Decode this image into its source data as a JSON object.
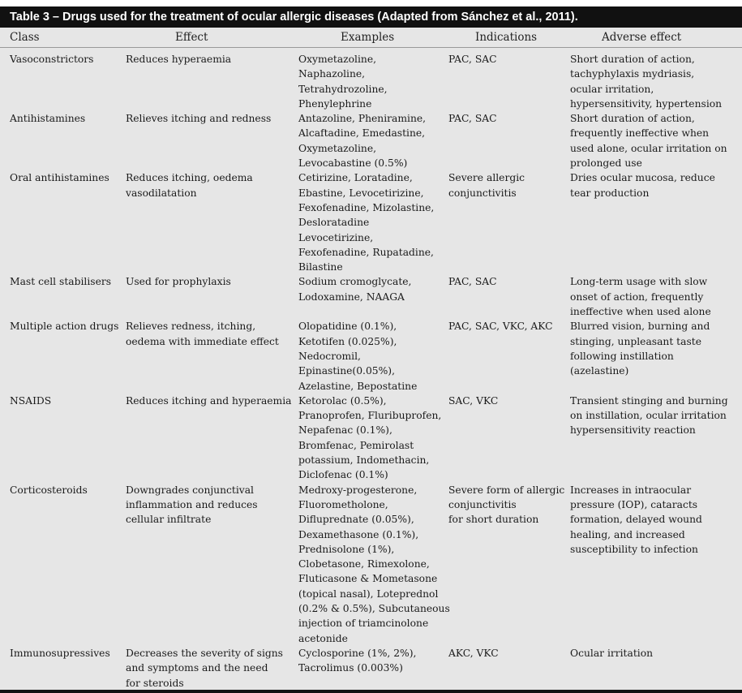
{
  "title": "Table 3 – Drugs used for the treatment of ocular allergic diseases (Adapted from Sánchez et al., 2011).",
  "columns": [
    "Class",
    "Effect",
    "Examples",
    "Indications",
    "Adverse effect"
  ],
  "rows": [
    {
      "class": [
        "Vasoconstrictors"
      ],
      "effect": [
        "Reduces hyperaemia"
      ],
      "examples": [
        "Oxymetazoline,",
        "Naphazoline,",
        "Tetrahydrozoline,",
        "Phenylephrine"
      ],
      "indications": [
        "PAC, SAC"
      ],
      "adverse": [
        "Short duration of action,",
        "tachyphylaxis mydriasis,",
        "ocular irritation,",
        "hypersensitivity, hypertension"
      ]
    },
    {
      "class": [
        "Antihistamines"
      ],
      "effect": [
        "Relieves itching and redness"
      ],
      "examples": [
        "Antazoline, Pheniramine,",
        "Alcaftadine, Emedastine,",
        "Oxymetazoline,",
        "Levocabastine (0.5%)"
      ],
      "indications": [
        "PAC, SAC"
      ],
      "adverse": [
        "Short duration of action,",
        "frequently ineffective when",
        "used alone, ocular irritation on",
        "prolonged use"
      ]
    },
    {
      "class": [
        "Oral antihistamines"
      ],
      "effect": [
        "Reduces itching, oedema",
        "vasodilatation"
      ],
      "examples": [
        "Cetirizine, Loratadine,",
        "Ebastine, Levocetirizine,",
        "Fexofenadine, Mizolastine,",
        "Desloratadine",
        "Levocetirizine,",
        "Fexofenadine, Rupatadine,",
        "Bilastine"
      ],
      "indications": [
        "Severe allergic",
        "conjunctivitis"
      ],
      "adverse": [
        "Dries ocular mucosa, reduce",
        "tear production"
      ]
    },
    {
      "class": [
        "Mast cell stabilisers"
      ],
      "effect": [
        "Used for prophylaxis"
      ],
      "examples": [
        "Sodium cromoglycate,",
        "Lodoxamine, NAAGA"
      ],
      "indications": [
        "PAC, SAC"
      ],
      "adverse": [
        "Long-term usage with slow",
        "onset of action, frequently",
        "ineffective when used alone"
      ]
    },
    {
      "class": [
        "Multiple action drugs"
      ],
      "effect": [
        "Relieves redness, itching,",
        "oedema with immediate effect"
      ],
      "examples": [
        "Olopatidine (0.1%),",
        "Ketotifen (0.025%),",
        "Nedocromil,",
        "Epinastine(0.05%),",
        "Azelastine, Bepostatine"
      ],
      "indications": [
        "PAC, SAC, VKC, AKC"
      ],
      "adverse": [
        "Blurred vision, burning and",
        "stinging, unpleasant taste",
        "following instillation",
        "(azelastine)"
      ]
    },
    {
      "class": [
        "NSAIDS"
      ],
      "effect": [
        "Reduces itching and hyperaemia"
      ],
      "examples": [
        "Ketorolac (0.5%),",
        "Pranoprofen, Fluribuprofen,",
        "Nepafenac (0.1%),",
        "Bromfenac, Pemirolast",
        "potassium, Indomethacin,",
        "Diclofenac (0.1%)"
      ],
      "indications": [
        "SAC, VKC"
      ],
      "adverse": [
        "Transient stinging and burning",
        "on instillation, ocular irritation",
        "hypersensitivity reaction"
      ]
    },
    {
      "class": [
        "Corticosteroids"
      ],
      "effect": [
        "Downgrades conjunctival",
        "inflammation and reduces",
        "cellular infiltrate"
      ],
      "examples": [
        "Medroxy-progesterone,",
        "Fluorometholone,",
        "Difluprednate (0.05%),",
        "Dexamethasone (0.1%),",
        "Prednisolone (1%),",
        "Clobetasone, Rimexolone,",
        "Fluticasone & Mometasone",
        "(topical nasal), Loteprednol",
        "(0.2% & 0.5%), Subcutaneous",
        "injection of triamcinolone",
        "acetonide"
      ],
      "indications": [
        "Severe form of allergic",
        "conjunctivitis",
        "for short duration"
      ],
      "adverse": [
        "Increases in intraocular",
        "pressure (IOP), cataracts",
        "formation, delayed wound",
        "healing, and increased",
        "susceptibility to infection"
      ]
    },
    {
      "class": [
        "Immunosupressives"
      ],
      "effect": [
        "Decreases the severity of signs",
        "and symptoms and the need",
        "for steroids"
      ],
      "examples": [
        "Cyclosporine (1%, 2%),",
        "Tacrolimus (0.003%)"
      ],
      "indications": [
        "AKC, VKC"
      ],
      "adverse": [
        "Ocular irritation"
      ]
    }
  ]
}
